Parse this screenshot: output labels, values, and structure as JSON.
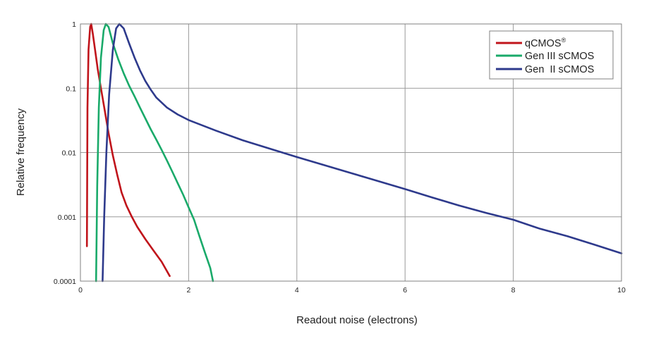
{
  "chart_data": {
    "type": "line",
    "xlabel": "Readout noise (electrons)",
    "ylabel": "Relative frequency",
    "xlim": [
      0,
      10
    ],
    "ylim": [
      0.0001,
      1
    ],
    "yscale": "log",
    "grid": true,
    "legend_position": "top-right",
    "x_ticks": [
      "0",
      "2",
      "4",
      "6",
      "8",
      "10"
    ],
    "y_ticks": [
      "0.0001",
      "0.001",
      "0.01",
      "0.1",
      "1"
    ],
    "series": [
      {
        "name": "qCMOS",
        "name_sup": "®",
        "color": "#c0141b",
        "points": [
          [
            0.12,
            0.00035
          ],
          [
            0.13,
            0.05
          ],
          [
            0.15,
            0.4
          ],
          [
            0.18,
            0.9
          ],
          [
            0.2,
            1.0
          ],
          [
            0.23,
            0.7
          ],
          [
            0.27,
            0.4
          ],
          [
            0.32,
            0.2
          ],
          [
            0.38,
            0.1
          ],
          [
            0.45,
            0.045
          ],
          [
            0.52,
            0.02
          ],
          [
            0.6,
            0.009
          ],
          [
            0.68,
            0.0045
          ],
          [
            0.76,
            0.0024
          ],
          [
            0.85,
            0.0015
          ],
          [
            0.95,
            0.001
          ],
          [
            1.05,
            0.0007
          ],
          [
            1.2,
            0.00045
          ],
          [
            1.35,
            0.0003
          ],
          [
            1.5,
            0.0002
          ],
          [
            1.65,
            0.00012
          ]
        ]
      },
      {
        "name": "Gen III sCMOS",
        "color": "#1aaa6a",
        "points": [
          [
            0.29,
            0.0001
          ],
          [
            0.31,
            0.003
          ],
          [
            0.34,
            0.05
          ],
          [
            0.38,
            0.3
          ],
          [
            0.43,
            0.8
          ],
          [
            0.47,
            1.0
          ],
          [
            0.52,
            0.9
          ],
          [
            0.6,
            0.5
          ],
          [
            0.7,
            0.28
          ],
          [
            0.8,
            0.17
          ],
          [
            0.9,
            0.11
          ],
          [
            1.0,
            0.075
          ],
          [
            1.1,
            0.05
          ],
          [
            1.2,
            0.034
          ],
          [
            1.3,
            0.023
          ],
          [
            1.4,
            0.016
          ],
          [
            1.5,
            0.011
          ],
          [
            1.6,
            0.0075
          ],
          [
            1.7,
            0.005
          ],
          [
            1.8,
            0.0033
          ],
          [
            1.9,
            0.0022
          ],
          [
            2.0,
            0.0014
          ],
          [
            2.1,
            0.0009
          ],
          [
            2.2,
            0.0005
          ],
          [
            2.3,
            0.00028
          ],
          [
            2.4,
            0.00016
          ],
          [
            2.45,
            0.0001
          ]
        ]
      },
      {
        "name": "Gen  II sCMOS",
        "color": "#2e3a8c",
        "points": [
          [
            0.41,
            0.0001
          ],
          [
            0.44,
            0.001
          ],
          [
            0.48,
            0.01
          ],
          [
            0.53,
            0.08
          ],
          [
            0.6,
            0.4
          ],
          [
            0.66,
            0.85
          ],
          [
            0.72,
            1.0
          ],
          [
            0.8,
            0.85
          ],
          [
            0.9,
            0.5
          ],
          [
            1.0,
            0.3
          ],
          [
            1.1,
            0.19
          ],
          [
            1.2,
            0.13
          ],
          [
            1.3,
            0.095
          ],
          [
            1.4,
            0.072
          ],
          [
            1.6,
            0.05
          ],
          [
            1.8,
            0.039
          ],
          [
            2.0,
            0.032
          ],
          [
            2.5,
            0.022
          ],
          [
            3.0,
            0.0155
          ],
          [
            3.5,
            0.0115
          ],
          [
            4.0,
            0.0085
          ],
          [
            4.5,
            0.0064
          ],
          [
            5.0,
            0.0048
          ],
          [
            5.5,
            0.0036
          ],
          [
            6.0,
            0.0027
          ],
          [
            6.5,
            0.002
          ],
          [
            7.0,
            0.0015
          ],
          [
            7.5,
            0.00115
          ],
          [
            8.0,
            0.0009
          ],
          [
            8.5,
            0.00065
          ],
          [
            9.0,
            0.0005
          ],
          [
            9.5,
            0.00037
          ],
          [
            10.0,
            0.00027
          ]
        ]
      }
    ]
  }
}
